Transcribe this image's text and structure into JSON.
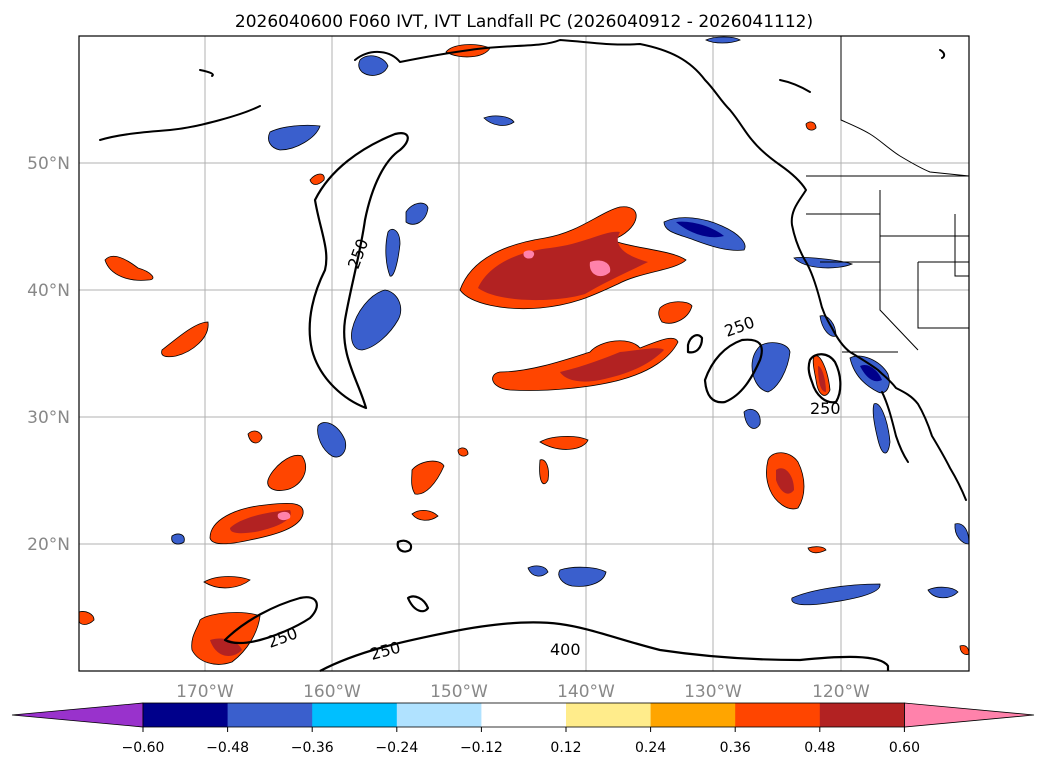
{
  "title": "2026040600 F060 IVT, IVT Landfall PC (2026040912 - 2026041112)",
  "lat_ticks": [
    "20°N",
    "30°N",
    "40°N",
    "50°N"
  ],
  "lon_ticks": [
    "170°W",
    "160°W",
    "150°W",
    "140°W",
    "130°W",
    "120°W"
  ],
  "contour_labels": [
    "250",
    "250",
    "250",
    "250",
    "250",
    "400"
  ],
  "colorbar": {
    "ticks": [
      "−0.60",
      "−0.48",
      "−0.36",
      "−0.24",
      "−0.12",
      "0.12",
      "0.24",
      "0.36",
      "0.48",
      "0.60"
    ],
    "colors": [
      "#9932cc",
      "#00008b",
      "#3a5fcd",
      "#00bfff",
      "#b0e2ff",
      "#ffffff",
      "#ffec8b",
      "#ffa500",
      "#ff4500",
      "#b22222",
      "#ff82ab"
    ]
  }
}
